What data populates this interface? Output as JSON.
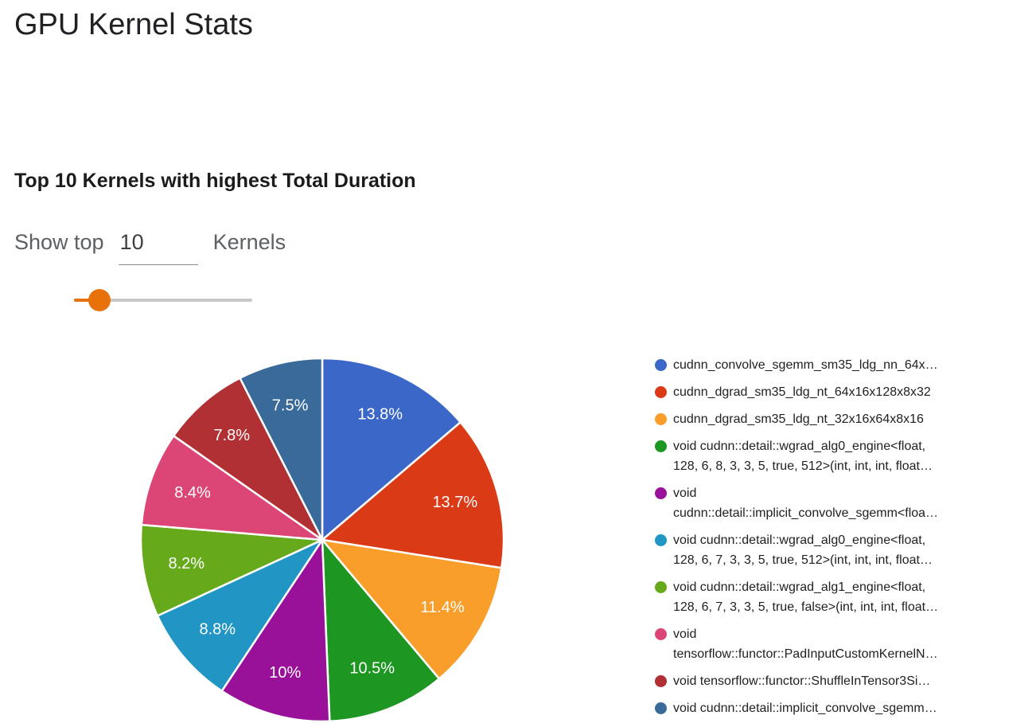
{
  "page": {
    "title": "GPU Kernel Stats"
  },
  "section": {
    "heading": "Top 10 Kernels with highest Total Duration"
  },
  "controls": {
    "show_top_label": "Show top",
    "top_count_value": "10",
    "kernels_label": "Kernels"
  },
  "chart_data": {
    "type": "pie",
    "title": "Top 10 Kernels with highest Total Duration",
    "values_are": "percent share of total kernel duration",
    "legend_position": "right",
    "start_angle_deg": 0,
    "direction": "clockwise",
    "slices": [
      {
        "label": "cudnn_convolve_sgemm_sm35_ldg_nn_64x…",
        "legend_lines": [
          "cudnn_convolve_sgemm_sm35_ldg_nn_64x…"
        ],
        "value": 13.8,
        "display": "13.8%",
        "color": "#3B68C8"
      },
      {
        "label": "cudnn_dgrad_sm35_ldg_nt_64x16x128x8x32",
        "legend_lines": [
          "cudnn_dgrad_sm35_ldg_nt_64x16x128x8x32"
        ],
        "value": 13.7,
        "display": "13.7%",
        "color": "#DB3A17"
      },
      {
        "label": "cudnn_dgrad_sm35_ldg_nt_32x16x64x8x16",
        "legend_lines": [
          "cudnn_dgrad_sm35_ldg_nt_32x16x64x8x16"
        ],
        "value": 11.4,
        "display": "11.4%",
        "color": "#F99D2B"
      },
      {
        "label": "void cudnn::detail::wgrad_alg0_engine<float, 128, 6, 8, 3, 3, 5, true, 512>(int, int, int, float…",
        "legend_lines": [
          "void cudnn::detail::wgrad_alg0_engine<float,",
          "128, 6, 8, 3, 3, 5, true, 512>(int, int, int, float…"
        ],
        "value": 10.5,
        "display": "10.5%",
        "color": "#1E9622"
      },
      {
        "label": "void cudnn::detail::implicit_convolve_sgemm<floa…",
        "legend_lines": [
          "void",
          "cudnn::detail::implicit_convolve_sgemm<floa…"
        ],
        "value": 10,
        "display": "10%",
        "color": "#991199"
      },
      {
        "label": "void cudnn::detail::wgrad_alg0_engine<float, 128, 6, 7, 3, 3, 5, true, 512>(int, int, int, float…",
        "legend_lines": [
          "void cudnn::detail::wgrad_alg0_engine<float,",
          "128, 6, 7, 3, 3, 5, true, 512>(int, int, int, float…"
        ],
        "value": 8.8,
        "display": "8.8%",
        "color": "#2196C4"
      },
      {
        "label": "void cudnn::detail::wgrad_alg1_engine<float, 128, 6, 7, 3, 3, 5, true, false>(int, int, int, float…",
        "legend_lines": [
          "void cudnn::detail::wgrad_alg1_engine<float,",
          "128, 6, 7, 3, 3, 5, true, false>(int, int, int, float…"
        ],
        "value": 8.2,
        "display": "8.2%",
        "color": "#66AA1C"
      },
      {
        "label": "void tensorflow::functor::PadInputCustomKernelN…",
        "legend_lines": [
          "void",
          "tensorflow::functor::PadInputCustomKernelN…"
        ],
        "value": 8.4,
        "display": "8.4%",
        "color": "#DB4677"
      },
      {
        "label": "void tensorflow::functor::ShuffleInTensor3Si…",
        "legend_lines": [
          "void tensorflow::functor::ShuffleInTensor3Si…"
        ],
        "value": 7.8,
        "display": "7.8%",
        "color": "#B03033"
      },
      {
        "label": "void cudnn::detail::implicit_convolve_sgemm…",
        "legend_lines": [
          "void cudnn::detail::implicit_convolve_sgemm…"
        ],
        "value": 7.5,
        "display": "7.5%",
        "color": "#3A6A99"
      }
    ]
  }
}
